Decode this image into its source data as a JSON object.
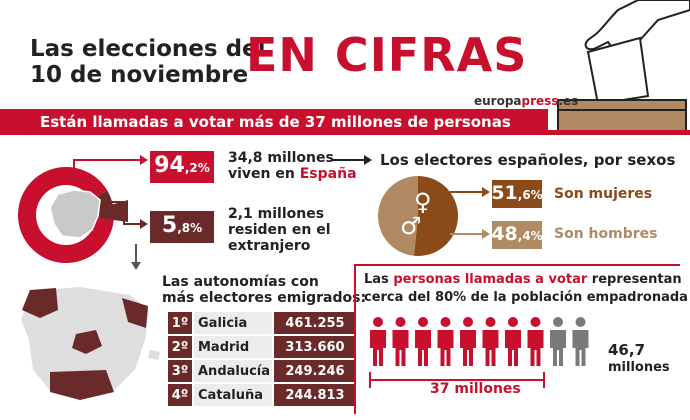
{
  "header": {
    "title_line1": "Las elecciones del",
    "title_line2": "10 de noviembre",
    "title_big": "EN CIFRAS",
    "brand_a": "europa",
    "brand_b": "press",
    "brand_c": ".es"
  },
  "banner": "Están llamadas a votar más de 37 millones de personas",
  "residence": {
    "spain": {
      "pct_int": "94",
      "pct_dec": ",2%",
      "line1": "34,8 millones",
      "line2": "viven en ",
      "line2_b": "España"
    },
    "abroad": {
      "pct_int": "5",
      "pct_dec": ",8%",
      "line1": "2,1 millones",
      "line2": "residen en el",
      "line3": "extranjero"
    }
  },
  "sexes": {
    "title": "Los electores españoles, por sexos",
    "women": {
      "pct_int": "51",
      "pct_dec": ",6%",
      "label": "Son mujeres"
    },
    "men": {
      "pct_int": "48",
      "pct_dec": ",4%",
      "label": "Son hombres"
    }
  },
  "emigrants": {
    "title_line1": "Las autonomías con",
    "title_line2": "más electores emigrados:",
    "rows": [
      {
        "rank": "1º",
        "name": "Galicia",
        "value": "461.255"
      },
      {
        "rank": "2º",
        "name": "Madrid",
        "value": "313.660"
      },
      {
        "rank": "3º",
        "name": "Andalucía",
        "value": "249.246"
      },
      {
        "rank": "4º",
        "name": "Cataluña",
        "value": "244.813"
      }
    ]
  },
  "census": {
    "text_a": "Las ",
    "text_b": "personas llamadas a votar",
    "text_c": " representan",
    "text_d": "cerca del 80% de la ",
    "text_e": "población empadronada",
    "called_label": "37 millones",
    "total_label_1": "46,7",
    "total_label_2": "millones"
  },
  "colors": {
    "red": "#c8102e",
    "dark_red": "#6b2a2a",
    "brown": "#8b4a1a",
    "tan": "#b08a63",
    "gray": "#7a7a7a"
  },
  "chart_data": [
    {
      "type": "pie",
      "categories": [
        "España",
        "extranjero"
      ],
      "values": [
        94.2,
        5.8
      ]
    },
    {
      "type": "pie",
      "categories": [
        "Son mujeres",
        "Son hombres"
      ],
      "values": [
        51.6,
        48.4
      ]
    },
    {
      "type": "bar",
      "categories": [
        "Galicia",
        "Madrid",
        "Andalucía",
        "Cataluña"
      ],
      "values": [
        461255,
        313660,
        249246,
        244813
      ]
    },
    {
      "type": "table",
      "categories": [
        "37 millones",
        "46,7 millones"
      ],
      "values": [
        37,
        46.7
      ]
    }
  ]
}
